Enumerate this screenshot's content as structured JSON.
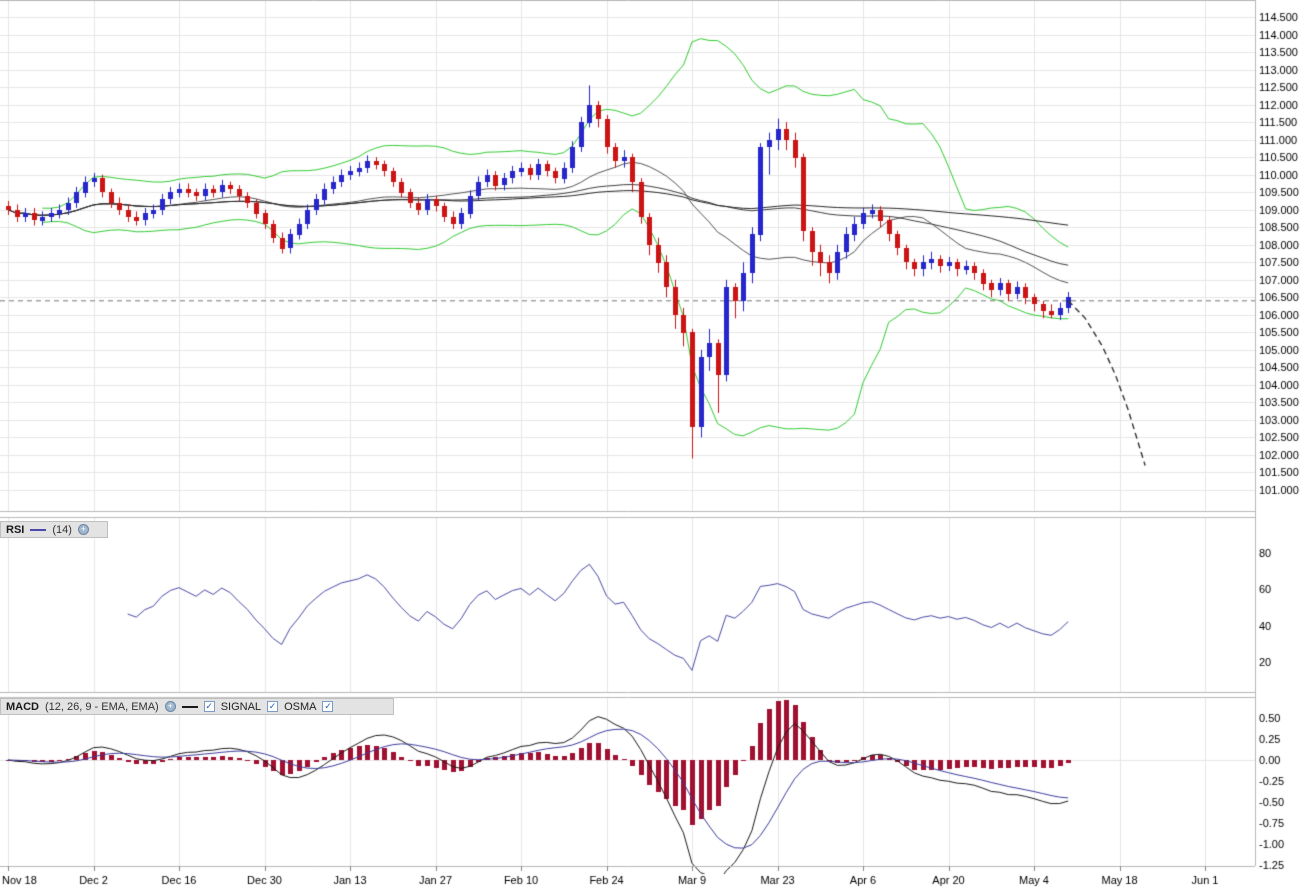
{
  "colors": {
    "background": "#ffffff",
    "grid": "#e6e6e6",
    "border": "#b8b8b8",
    "axis_text": "#000000",
    "bull_candle": "#2626cc",
    "bear_candle": "#cc1414",
    "bollinger": "#33cc33",
    "ma_fast": "#555555",
    "ma_mid": "#3d3d3d",
    "ma_slow": "#262626",
    "level_line": "#777777",
    "projection": "#333333",
    "rsi_line": "#4a4aa8",
    "macd_line": "#1a1a1a",
    "signal_line": "#3c3c9e",
    "osma_bar": "#a01030",
    "header_bg": "#e3e3e3"
  },
  "panels": {
    "rsi": {
      "label": "RSI",
      "params": "(14)"
    },
    "macd": {
      "label": "MACD",
      "params": "(12, 26, 9 - EMA, EMA)",
      "signal_label": "SIGNAL",
      "osma_label": "OSMA"
    }
  },
  "chart_data": [
    {
      "type": "candlestick",
      "title": "",
      "x_labels": [
        "Nov 18",
        "Dec 2",
        "Dec 16",
        "Dec 30",
        "Jan 13",
        "Jan 27",
        "Feb 10",
        "Feb 24",
        "Mar 9",
        "Mar 23",
        "Apr 6",
        "Apr 20",
        "May 4",
        "May 18",
        "Jun 1"
      ],
      "bars_per_label": 10,
      "y_min": 101.0,
      "y_max": 114.5,
      "y_step": 0.5,
      "level_line": 106.4,
      "overlays": {
        "bollinger_period": 20,
        "bollinger_dev": 2,
        "ma_periods": [
          20,
          50,
          100
        ]
      },
      "projection": [
        [
          124,
          106.4
        ],
        [
          126,
          105.9
        ],
        [
          128,
          105.1
        ],
        [
          129.5,
          104.3
        ],
        [
          131,
          103.3
        ],
        [
          132,
          102.5
        ],
        [
          133,
          101.7
        ]
      ],
      "candles": [
        [
          109.1,
          109.25,
          108.85,
          109.0
        ],
        [
          109.0,
          109.15,
          108.65,
          108.8
        ],
        [
          108.8,
          109.05,
          108.65,
          108.9
        ],
        [
          108.9,
          109.05,
          108.55,
          108.7
        ],
        [
          108.7,
          108.95,
          108.55,
          108.8
        ],
        [
          108.8,
          109.05,
          108.65,
          108.9
        ],
        [
          108.9,
          109.15,
          108.75,
          109.0
        ],
        [
          109.0,
          109.35,
          108.85,
          109.2
        ],
        [
          109.2,
          109.65,
          109.05,
          109.5
        ],
        [
          109.5,
          109.95,
          109.35,
          109.8
        ],
        [
          109.8,
          110.05,
          109.65,
          109.9
        ],
        [
          109.9,
          110.0,
          109.35,
          109.5
        ],
        [
          109.5,
          109.6,
          109.05,
          109.2
        ],
        [
          109.2,
          109.35,
          108.85,
          109.0
        ],
        [
          109.0,
          109.15,
          108.65,
          108.8
        ],
        [
          108.8,
          108.95,
          108.55,
          108.7
        ],
        [
          108.7,
          109.05,
          108.55,
          108.9
        ],
        [
          108.9,
          109.15,
          108.75,
          109.0
        ],
        [
          109.0,
          109.45,
          108.85,
          109.3
        ],
        [
          109.3,
          109.65,
          109.15,
          109.5
        ],
        [
          109.5,
          109.75,
          109.35,
          109.6
        ],
        [
          109.6,
          109.75,
          109.35,
          109.5
        ],
        [
          109.5,
          109.6,
          109.25,
          109.4
        ],
        [
          109.4,
          109.75,
          109.25,
          109.6
        ],
        [
          109.6,
          109.7,
          109.35,
          109.5
        ],
        [
          109.5,
          109.85,
          109.35,
          109.7
        ],
        [
          109.7,
          109.8,
          109.45,
          109.6
        ],
        [
          109.6,
          109.7,
          109.25,
          109.4
        ],
        [
          109.4,
          109.5,
          109.05,
          109.2
        ],
        [
          109.2,
          109.3,
          108.75,
          108.9
        ],
        [
          108.9,
          109.0,
          108.45,
          108.6
        ],
        [
          108.6,
          108.7,
          108.05,
          108.2
        ],
        [
          108.2,
          108.35,
          107.75,
          107.9
        ],
        [
          107.9,
          108.45,
          107.75,
          108.3
        ],
        [
          108.3,
          108.75,
          108.15,
          108.6
        ],
        [
          108.6,
          109.15,
          108.45,
          109.0
        ],
        [
          109.0,
          109.45,
          108.85,
          109.3
        ],
        [
          109.3,
          109.75,
          109.15,
          109.6
        ],
        [
          109.6,
          109.95,
          109.45,
          109.8
        ],
        [
          109.8,
          110.15,
          109.65,
          110.0
        ],
        [
          110.0,
          110.25,
          109.85,
          110.1
        ],
        [
          110.1,
          110.35,
          109.95,
          110.2
        ],
        [
          110.2,
          110.55,
          110.05,
          110.4
        ],
        [
          110.4,
          110.5,
          110.15,
          110.3
        ],
        [
          110.3,
          110.4,
          109.95,
          110.1
        ],
        [
          110.1,
          110.2,
          109.65,
          109.8
        ],
        [
          109.8,
          109.9,
          109.35,
          109.5
        ],
        [
          109.5,
          109.6,
          109.05,
          109.2
        ],
        [
          109.2,
          109.35,
          108.85,
          109.0
        ],
        [
          109.0,
          109.45,
          108.85,
          109.3
        ],
        [
          109.3,
          109.4,
          108.95,
          109.1
        ],
        [
          109.1,
          109.2,
          108.65,
          108.8
        ],
        [
          108.8,
          108.95,
          108.45,
          108.6
        ],
        [
          108.6,
          109.05,
          108.45,
          108.9
        ],
        [
          108.9,
          109.55,
          108.75,
          109.4
        ],
        [
          109.4,
          109.95,
          109.25,
          109.8
        ],
        [
          109.8,
          110.15,
          109.65,
          110.0
        ],
        [
          110.0,
          110.1,
          109.55,
          109.7
        ],
        [
          109.7,
          110.05,
          109.55,
          109.9
        ],
        [
          109.9,
          110.25,
          109.75,
          110.1
        ],
        [
          110.1,
          110.35,
          109.95,
          110.2
        ],
        [
          110.2,
          110.3,
          109.85,
          110.0
        ],
        [
          110.0,
          110.45,
          109.85,
          110.3
        ],
        [
          110.3,
          110.4,
          109.95,
          110.1
        ],
        [
          110.1,
          110.2,
          109.75,
          109.9
        ],
        [
          109.9,
          110.35,
          109.75,
          110.2
        ],
        [
          110.2,
          110.95,
          110.05,
          110.8
        ],
        [
          110.8,
          111.65,
          110.65,
          111.5
        ],
        [
          111.5,
          112.55,
          111.35,
          112.0
        ],
        [
          112.0,
          112.1,
          111.35,
          111.6
        ],
        [
          111.6,
          111.7,
          110.6,
          110.8
        ],
        [
          110.8,
          110.9,
          110.2,
          110.4
        ],
        [
          110.4,
          110.7,
          110.2,
          110.5
        ],
        [
          110.5,
          110.6,
          109.5,
          109.8
        ],
        [
          109.8,
          109.9,
          108.6,
          108.8
        ],
        [
          108.8,
          108.9,
          107.7,
          108.0
        ],
        [
          108.0,
          108.2,
          107.2,
          107.5
        ],
        [
          107.5,
          107.7,
          106.5,
          106.8
        ],
        [
          106.8,
          107.0,
          105.6,
          106.0
        ],
        [
          106.0,
          106.2,
          105.1,
          105.5
        ],
        [
          105.5,
          105.6,
          101.9,
          102.8
        ],
        [
          102.8,
          105.0,
          102.5,
          104.8
        ],
        [
          104.8,
          105.6,
          104.4,
          105.2
        ],
        [
          105.2,
          105.3,
          103.2,
          104.3
        ],
        [
          104.3,
          107.0,
          104.1,
          106.8
        ],
        [
          106.8,
          106.9,
          105.9,
          106.4
        ],
        [
          106.4,
          107.5,
          106.1,
          107.2
        ],
        [
          107.2,
          108.5,
          106.9,
          108.3
        ],
        [
          108.3,
          110.9,
          108.1,
          110.8
        ],
        [
          110.8,
          111.2,
          110.0,
          111.0
        ],
        [
          111.0,
          111.6,
          110.7,
          111.3
        ],
        [
          111.3,
          111.5,
          110.7,
          111.0
        ],
        [
          111.0,
          111.2,
          110.2,
          110.5
        ],
        [
          110.5,
          110.6,
          108.1,
          108.4
        ],
        [
          108.4,
          108.5,
          107.4,
          107.8
        ],
        [
          107.8,
          108.0,
          107.1,
          107.5
        ],
        [
          107.5,
          107.7,
          106.9,
          107.2
        ],
        [
          107.2,
          108.0,
          107.0,
          107.8
        ],
        [
          107.8,
          108.5,
          107.6,
          108.3
        ],
        [
          108.3,
          108.8,
          108.1,
          108.6
        ],
        [
          108.6,
          109.05,
          108.45,
          108.9
        ],
        [
          108.9,
          109.15,
          108.75,
          109.0
        ],
        [
          109.0,
          109.1,
          108.5,
          108.7
        ],
        [
          108.7,
          108.8,
          108.1,
          108.3
        ],
        [
          108.3,
          108.4,
          107.7,
          107.9
        ],
        [
          107.9,
          108.0,
          107.3,
          107.5
        ],
        [
          107.5,
          107.6,
          107.1,
          107.3
        ],
        [
          107.3,
          107.7,
          107.1,
          107.5
        ],
        [
          107.5,
          107.8,
          107.3,
          107.6
        ],
        [
          107.6,
          107.7,
          107.2,
          107.4
        ],
        [
          107.4,
          107.65,
          107.25,
          107.5
        ],
        [
          107.5,
          107.6,
          107.1,
          107.3
        ],
        [
          107.3,
          107.55,
          107.15,
          107.4
        ],
        [
          107.4,
          107.5,
          107.0,
          107.2
        ],
        [
          107.2,
          107.3,
          106.7,
          106.9
        ],
        [
          106.9,
          107.0,
          106.5,
          106.7
        ],
        [
          106.7,
          107.05,
          106.55,
          106.9
        ],
        [
          106.9,
          107.0,
          106.4,
          106.6
        ],
        [
          106.6,
          106.95,
          106.45,
          106.8
        ],
        [
          106.8,
          106.9,
          106.3,
          106.5
        ],
        [
          106.5,
          106.6,
          106.1,
          106.3
        ],
        [
          106.3,
          106.4,
          105.9,
          106.1
        ],
        [
          106.1,
          106.3,
          105.9,
          106.0
        ],
        [
          106.0,
          106.35,
          105.85,
          106.2
        ],
        [
          106.2,
          106.65,
          106.05,
          106.5
        ]
      ]
    },
    {
      "type": "line",
      "name": "RSI",
      "period": 14,
      "y_ticks": [
        80,
        60,
        40,
        20
      ],
      "y_min": 10,
      "y_max": 90
    },
    {
      "type": "macd",
      "fast": 12,
      "slow": 26,
      "signal": 9,
      "y_ticks": [
        0.5,
        0.25,
        0,
        -0.25,
        -0.5,
        -0.75,
        -1.0,
        -1.25
      ],
      "y_min": -1.45,
      "y_max": 0.62
    }
  ]
}
